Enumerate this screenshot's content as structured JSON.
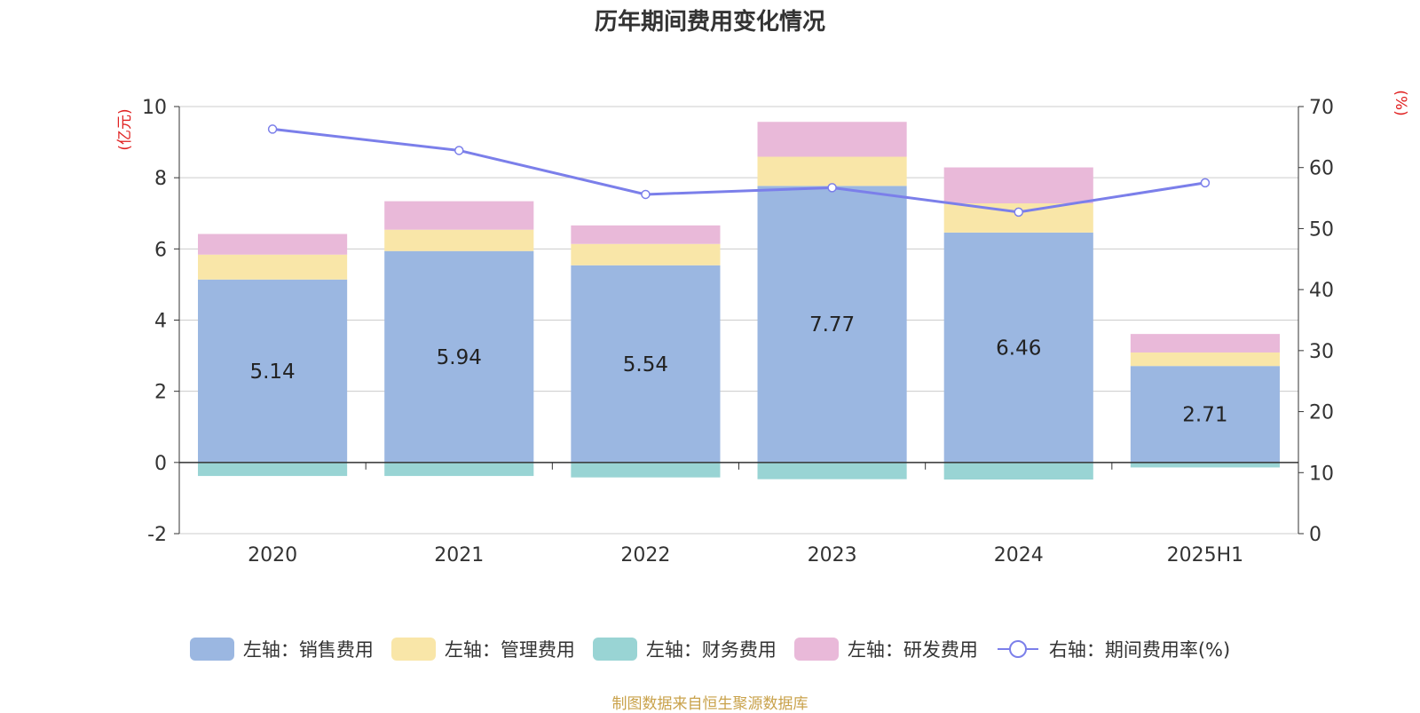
{
  "chart_data": {
    "title": "历年期间费用变化情况",
    "type": "bar+line",
    "categories": [
      "2020",
      "2021",
      "2022",
      "2023",
      "2024",
      "2025H1"
    ],
    "left_axis": {
      "unit": "(亿元)",
      "ylim": [
        -2,
        10
      ],
      "ticks": [
        -2,
        0,
        2,
        4,
        6,
        8,
        10
      ]
    },
    "right_axis": {
      "unit": "(%)",
      "ylim": [
        0,
        70
      ],
      "ticks": [
        0,
        10,
        20,
        30,
        40,
        50,
        60,
        70
      ]
    },
    "series": [
      {
        "name": "左轴：销售费用",
        "axis": "left",
        "type": "bar",
        "color": "#9bb7e1",
        "values": [
          5.14,
          5.94,
          5.54,
          7.77,
          6.46,
          2.71
        ],
        "show_labels": true
      },
      {
        "name": "左轴：管理费用",
        "axis": "left",
        "type": "bar",
        "color": "#f9e6a8",
        "values": [
          0.7,
          0.6,
          0.6,
          0.82,
          0.82,
          0.38
        ]
      },
      {
        "name": "左轴：财务费用",
        "axis": "left",
        "type": "bar",
        "color": "#99d4d4",
        "values": [
          -0.38,
          -0.38,
          -0.42,
          -0.47,
          -0.48,
          -0.14
        ]
      },
      {
        "name": "左轴：研发费用",
        "axis": "left",
        "type": "bar",
        "color": "#e9b9d9",
        "values": [
          0.58,
          0.8,
          0.52,
          0.98,
          1.01,
          0.52
        ]
      },
      {
        "name": "右轴：期间费用率(%)",
        "axis": "right",
        "type": "line",
        "color": "#7b7fea",
        "values": [
          66.3,
          62.8,
          55.6,
          56.7,
          52.7,
          57.5
        ]
      }
    ],
    "grid": true,
    "legend_position": "bottom"
  },
  "source": "制图数据来自恒生聚源数据库"
}
